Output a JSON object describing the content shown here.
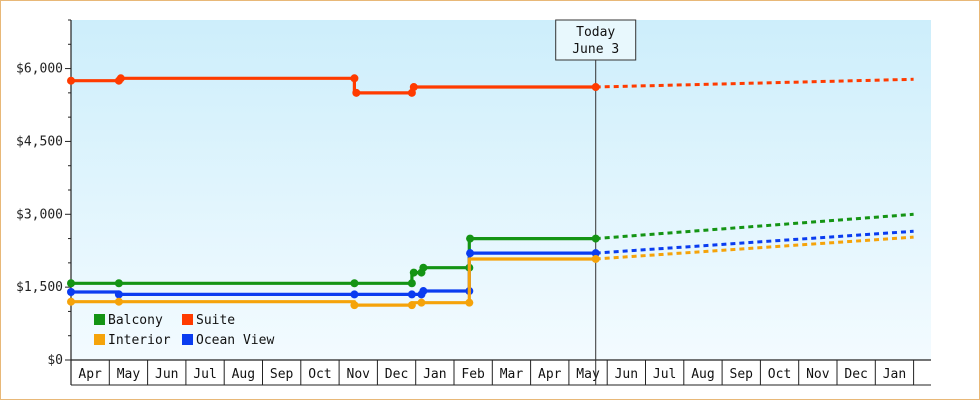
{
  "chart_data": {
    "type": "line",
    "title": "",
    "xlabel": "",
    "ylabel": "",
    "ylim": [
      0,
      7000
    ],
    "y_ticks": [
      {
        "value": 0,
        "label": "$0"
      },
      {
        "value": 1500,
        "label": "$1,500"
      },
      {
        "value": 3000,
        "label": "$3,000"
      },
      {
        "value": 4500,
        "label": "$4,500"
      },
      {
        "value": 6000,
        "label": "$6,000"
      }
    ],
    "months": [
      "Apr",
      "May",
      "Jun",
      "Jul",
      "Aug",
      "Sep",
      "Oct",
      "Nov",
      "Dec",
      "Jan",
      "Feb",
      "Mar",
      "Apr",
      "May",
      "Jun",
      "Jul",
      "Aug",
      "Sep",
      "Oct",
      "Nov",
      "Dec",
      "Jan"
    ],
    "today": {
      "month_index": 13.7,
      "line1": "Today",
      "line2": "June 3"
    },
    "legend_placement": "bottom-left",
    "series": [
      {
        "name": "Suite",
        "color": "#ff3b00",
        "history": [
          [
            0,
            5750
          ],
          [
            1.25,
            5750
          ],
          [
            1.25,
            5800
          ],
          [
            7.4,
            5800
          ],
          [
            7.4,
            5500
          ],
          [
            8.9,
            5500
          ],
          [
            8.9,
            5620
          ],
          [
            13.7,
            5620
          ]
        ],
        "markers": [
          [
            0,
            5750
          ],
          [
            1.25,
            5750
          ],
          [
            1.3,
            5800
          ],
          [
            7.4,
            5800
          ],
          [
            7.45,
            5500
          ],
          [
            8.9,
            5500
          ],
          [
            8.95,
            5620
          ],
          [
            13.7,
            5620
          ]
        ],
        "forecast": [
          [
            13.7,
            5620
          ],
          [
            22,
            5780
          ]
        ]
      },
      {
        "name": "Balcony",
        "color": "#149414",
        "history": [
          [
            0,
            1580
          ],
          [
            1.25,
            1580
          ],
          [
            7.4,
            1580
          ],
          [
            8.9,
            1580
          ],
          [
            8.9,
            1800
          ],
          [
            9.15,
            1800
          ],
          [
            9.15,
            1900
          ],
          [
            10.4,
            1900
          ],
          [
            10.4,
            2500
          ],
          [
            13.7,
            2500
          ]
        ],
        "markers": [
          [
            0,
            1580
          ],
          [
            1.25,
            1580
          ],
          [
            7.4,
            1580
          ],
          [
            8.9,
            1580
          ],
          [
            8.95,
            1800
          ],
          [
            9.15,
            1800
          ],
          [
            9.2,
            1900
          ],
          [
            10.4,
            1900
          ],
          [
            10.42,
            2500
          ],
          [
            13.7,
            2500
          ]
        ],
        "forecast": [
          [
            13.7,
            2500
          ],
          [
            22,
            3000
          ]
        ]
      },
      {
        "name": "Ocean View",
        "color": "#0a3cf0",
        "history": [
          [
            0,
            1400
          ],
          [
            1.25,
            1400
          ],
          [
            1.25,
            1350
          ],
          [
            7.4,
            1350
          ],
          [
            8.9,
            1350
          ],
          [
            9.15,
            1350
          ],
          [
            9.15,
            1420
          ],
          [
            10.4,
            1420
          ],
          [
            10.4,
            2200
          ],
          [
            13.7,
            2200
          ]
        ],
        "markers": [
          [
            0,
            1400
          ],
          [
            1.25,
            1350
          ],
          [
            7.4,
            1350
          ],
          [
            8.9,
            1350
          ],
          [
            9.15,
            1350
          ],
          [
            9.2,
            1420
          ],
          [
            10.4,
            1420
          ],
          [
            10.42,
            2200
          ],
          [
            13.7,
            2200
          ]
        ],
        "forecast": [
          [
            13.7,
            2200
          ],
          [
            22,
            2650
          ]
        ]
      },
      {
        "name": "Interior",
        "color": "#f5a30a",
        "history": [
          [
            0,
            1200
          ],
          [
            1.25,
            1200
          ],
          [
            7.4,
            1200
          ],
          [
            7.4,
            1130
          ],
          [
            8.9,
            1130
          ],
          [
            8.9,
            1180
          ],
          [
            10.4,
            1180
          ],
          [
            10.4,
            2080
          ],
          [
            13.7,
            2080
          ]
        ],
        "markers": [
          [
            0,
            1200
          ],
          [
            1.25,
            1200
          ],
          [
            7.4,
            1130
          ],
          [
            8.9,
            1130
          ],
          [
            9.15,
            1180
          ],
          [
            10.4,
            1180
          ],
          [
            13.7,
            2080
          ]
        ],
        "forecast": [
          [
            13.7,
            2080
          ],
          [
            22,
            2530
          ]
        ]
      }
    ],
    "legend": [
      {
        "name": "Balcony",
        "color": "#149414"
      },
      {
        "name": "Suite",
        "color": "#ff3b00"
      },
      {
        "name": "Interior",
        "color": "#f5a30a"
      },
      {
        "name": "Ocean View",
        "color": "#0a3cf0"
      }
    ]
  }
}
